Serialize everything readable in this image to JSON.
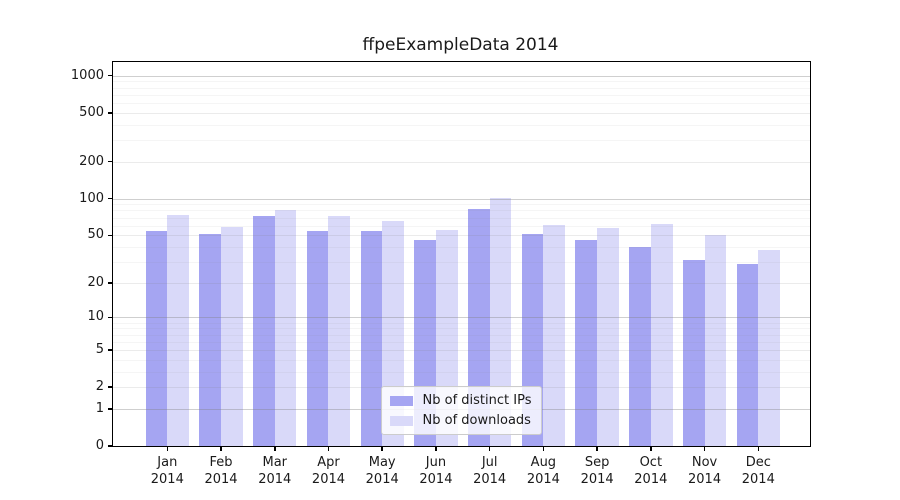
{
  "chart_data": {
    "type": "bar",
    "title": "ffpeExampleData 2014",
    "categories": [
      "Jan",
      "Feb",
      "Mar",
      "Apr",
      "May",
      "Jun",
      "Jul",
      "Aug",
      "Sep",
      "Oct",
      "Nov",
      "Dec"
    ],
    "category_year": "2014",
    "series": [
      {
        "name": "Nb of distinct IPs",
        "color": "#a5a5f2",
        "values": [
          54,
          51,
          72,
          54,
          54,
          46,
          83,
          51,
          46,
          40,
          31,
          29
        ]
      },
      {
        "name": "Nb of downloads",
        "color": "#d9d9f9",
        "values": [
          74,
          59,
          80,
          72,
          66,
          55,
          102,
          61,
          57,
          62,
          50,
          38
        ]
      }
    ],
    "yscale": "log1p",
    "ytick_labels": [
      "1000",
      "500",
      "200",
      "100",
      "50",
      "20",
      "10",
      "5",
      "2",
      "1",
      "0"
    ],
    "ytick_values": [
      1000,
      500,
      200,
      100,
      50,
      20,
      10,
      5,
      2,
      1,
      0
    ],
    "ylim": [
      0,
      1300
    ],
    "grid": true,
    "legend_position": "lower center"
  },
  "colors": {
    "ips_bar": "#a5a5f2",
    "downloads_bar": "#d9d9f9",
    "axis": "#000000",
    "grid": "#808080",
    "legend_border": "#cccccc",
    "text": "#1a1a1a"
  }
}
